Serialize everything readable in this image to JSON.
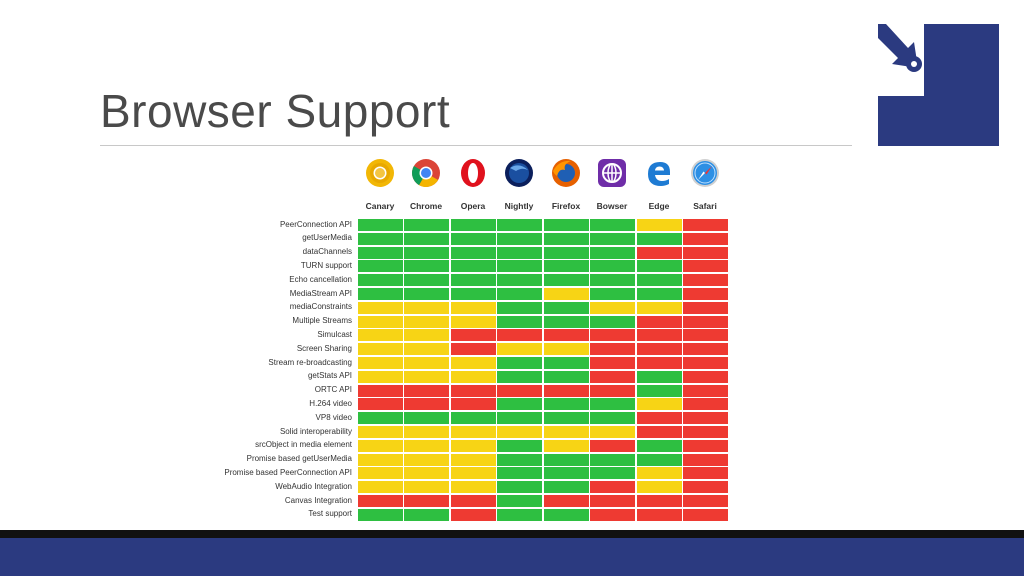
{
  "title": "Browser Support",
  "colors": {
    "green": "#2ebf41",
    "yellow": "#f7d415",
    "red": "#ee3a32",
    "brand": "#2b3a80"
  },
  "browsers": [
    {
      "name": "Canary",
      "icon": "chrome-canary-icon"
    },
    {
      "name": "Chrome",
      "icon": "chrome-icon"
    },
    {
      "name": "Opera",
      "icon": "opera-icon"
    },
    {
      "name": "Nightly",
      "icon": "firefox-nightly-icon"
    },
    {
      "name": "Firefox",
      "icon": "firefox-icon"
    },
    {
      "name": "Bowser",
      "icon": "bowser-icon"
    },
    {
      "name": "Edge",
      "icon": "edge-icon"
    },
    {
      "name": "Safari",
      "icon": "safari-icon"
    }
  ],
  "features": [
    {
      "name": "PeerConnection API",
      "support": [
        "G",
        "G",
        "G",
        "G",
        "G",
        "G",
        "Y",
        "R"
      ]
    },
    {
      "name": "getUserMedia",
      "support": [
        "G",
        "G",
        "G",
        "G",
        "G",
        "G",
        "G",
        "R"
      ]
    },
    {
      "name": "dataChannels",
      "support": [
        "G",
        "G",
        "G",
        "G",
        "G",
        "G",
        "R",
        "R"
      ]
    },
    {
      "name": "TURN support",
      "support": [
        "G",
        "G",
        "G",
        "G",
        "G",
        "G",
        "G",
        "R"
      ]
    },
    {
      "name": "Echo cancellation",
      "support": [
        "G",
        "G",
        "G",
        "G",
        "G",
        "G",
        "G",
        "R"
      ]
    },
    {
      "name": "MediaStream API",
      "support": [
        "G",
        "G",
        "G",
        "G",
        "Y",
        "G",
        "G",
        "R"
      ]
    },
    {
      "name": "mediaConstraints",
      "support": [
        "Y",
        "Y",
        "Y",
        "G",
        "G",
        "Y",
        "Y",
        "R"
      ]
    },
    {
      "name": "Multiple Streams",
      "support": [
        "Y",
        "Y",
        "Y",
        "G",
        "G",
        "G",
        "R",
        "R"
      ]
    },
    {
      "name": "Simulcast",
      "support": [
        "Y",
        "Y",
        "R",
        "R",
        "R",
        "R",
        "R",
        "R"
      ]
    },
    {
      "name": "Screen Sharing",
      "support": [
        "Y",
        "Y",
        "R",
        "Y",
        "Y",
        "R",
        "R",
        "R"
      ]
    },
    {
      "name": "Stream re-broadcasting",
      "support": [
        "Y",
        "Y",
        "Y",
        "G",
        "G",
        "R",
        "R",
        "R"
      ]
    },
    {
      "name": "getStats API",
      "support": [
        "Y",
        "Y",
        "Y",
        "G",
        "G",
        "R",
        "G",
        "R"
      ]
    },
    {
      "name": "ORTC API",
      "support": [
        "R",
        "R",
        "R",
        "R",
        "R",
        "R",
        "G",
        "R"
      ]
    },
    {
      "name": "H.264 video",
      "support": [
        "R",
        "R",
        "R",
        "G",
        "G",
        "G",
        "Y",
        "R"
      ]
    },
    {
      "name": "VP8 video",
      "support": [
        "G",
        "G",
        "G",
        "G",
        "G",
        "G",
        "R",
        "R"
      ]
    },
    {
      "name": "Solid interoperability",
      "support": [
        "Y",
        "Y",
        "Y",
        "Y",
        "Y",
        "Y",
        "R",
        "R"
      ]
    },
    {
      "name": "srcObject in media element",
      "support": [
        "Y",
        "Y",
        "Y",
        "G",
        "Y",
        "R",
        "G",
        "R"
      ]
    },
    {
      "name": "Promise based getUserMedia",
      "support": [
        "Y",
        "Y",
        "Y",
        "G",
        "G",
        "G",
        "G",
        "R"
      ]
    },
    {
      "name": "Promise based PeerConnection API",
      "support": [
        "Y",
        "Y",
        "Y",
        "G",
        "G",
        "G",
        "Y",
        "R"
      ]
    },
    {
      "name": "WebAudio Integration",
      "support": [
        "Y",
        "Y",
        "Y",
        "G",
        "G",
        "R",
        "Y",
        "R"
      ]
    },
    {
      "name": "Canvas Integration",
      "support": [
        "R",
        "R",
        "R",
        "G",
        "R",
        "R",
        "R",
        "R"
      ]
    },
    {
      "name": "Test support",
      "support": [
        "G",
        "G",
        "R",
        "G",
        "G",
        "R",
        "R",
        "R"
      ]
    }
  ]
}
